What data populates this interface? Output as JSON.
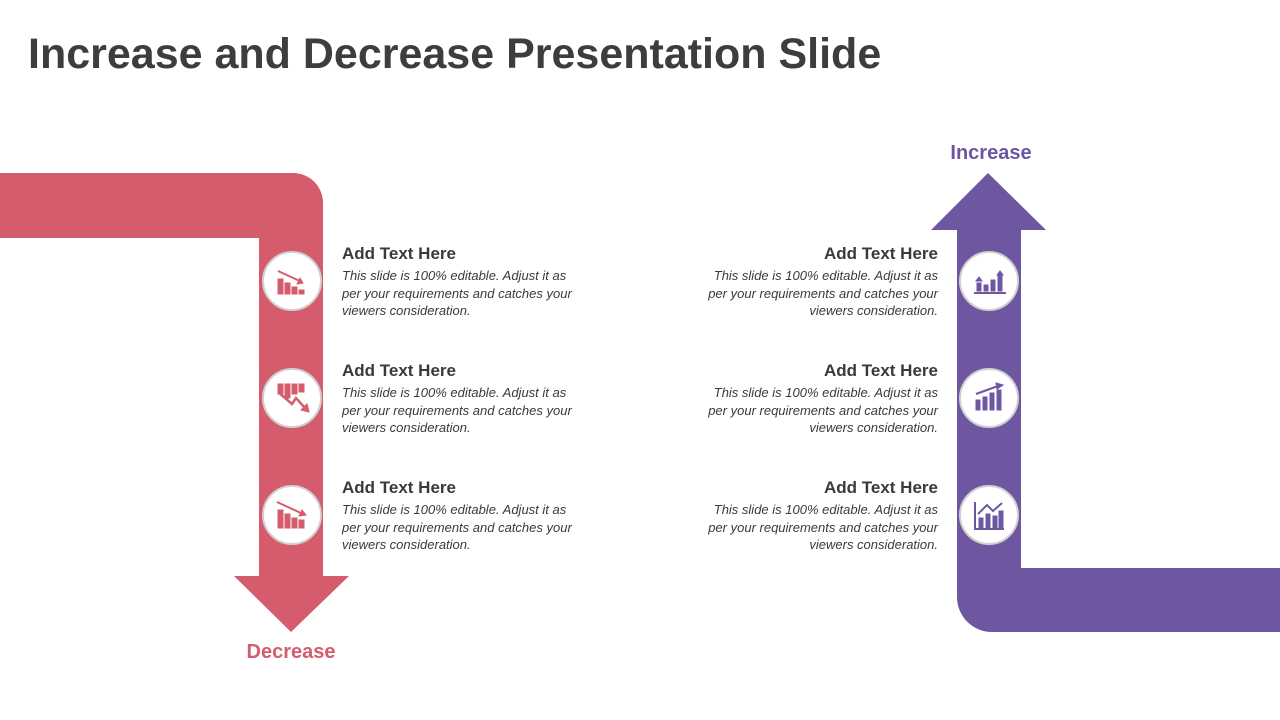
{
  "title": "Increase and Decrease Presentation Slide",
  "decrease": {
    "label": "Decrease",
    "items": [
      {
        "heading": "Add Text Here",
        "body": "This slide is 100%  editable. Adjust it as per your requirements and catches your viewers consideration."
      },
      {
        "heading": "Add Text Here",
        "body": "This slide is 100%  editable. Adjust it as per your requirements and catches your viewers consideration."
      },
      {
        "heading": "Add Text Here",
        "body": "This slide is 100%  editable. Adjust it as per your requirements and catches your viewers consideration."
      }
    ]
  },
  "increase": {
    "label": "Increase",
    "items": [
      {
        "heading": "Add Text Here",
        "body": "This slide is 100%  editable. Adjust it as per your requirements and catches your viewers consideration."
      },
      {
        "heading": "Add Text Here",
        "body": "This slide is 100%  editable. Adjust it as per your requirements and catches your viewers consideration."
      },
      {
        "heading": "Add Text Here",
        "body": "This slide is 100%  editable. Adjust it as per your requirements and catches your viewers consideration."
      }
    ]
  }
}
